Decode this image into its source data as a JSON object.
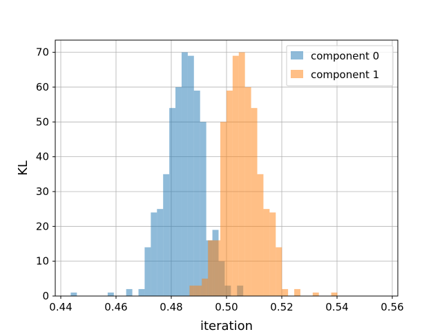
{
  "chart_data": {
    "type": "bar",
    "title": "",
    "xlabel": "iteration",
    "ylabel": "KL",
    "xlim": [
      0.438,
      0.562
    ],
    "ylim": [
      0,
      73.5
    ],
    "xticks": [
      0.44,
      0.46,
      0.48,
      0.5,
      0.52,
      0.54,
      0.56
    ],
    "xtick_labels": [
      "0.44",
      "0.46",
      "0.48",
      "0.50",
      "0.52",
      "0.54",
      "0.56"
    ],
    "yticks": [
      0,
      10,
      20,
      30,
      40,
      50,
      60,
      70
    ],
    "ytick_labels": [
      "0",
      "10",
      "20",
      "30",
      "40",
      "50",
      "60",
      "70"
    ],
    "grid": true,
    "legend_position": "top-right",
    "bin_width": 0.00223,
    "series": [
      {
        "name": "component 0",
        "color": "#1f77b4",
        "alpha": 0.5,
        "bin_start": 0.4436,
        "counts": [
          1,
          0,
          0,
          0,
          0,
          0,
          1,
          0,
          0,
          2,
          0,
          2,
          14,
          24,
          25,
          35,
          54,
          60,
          70,
          69,
          59,
          50,
          16,
          19,
          10,
          3,
          0,
          3,
          0,
          0,
          0,
          0,
          0,
          0,
          0,
          0
        ]
      },
      {
        "name": "component 1",
        "color": "#ff7f0e",
        "alpha": 0.5,
        "bin_start": 0.4866,
        "counts": [
          3,
          3,
          5,
          16,
          16,
          50,
          59,
          69,
          70,
          60,
          54,
          35,
          25,
          24,
          14,
          2,
          0,
          2,
          0,
          0,
          1,
          0,
          0,
          1
        ]
      }
    ]
  }
}
